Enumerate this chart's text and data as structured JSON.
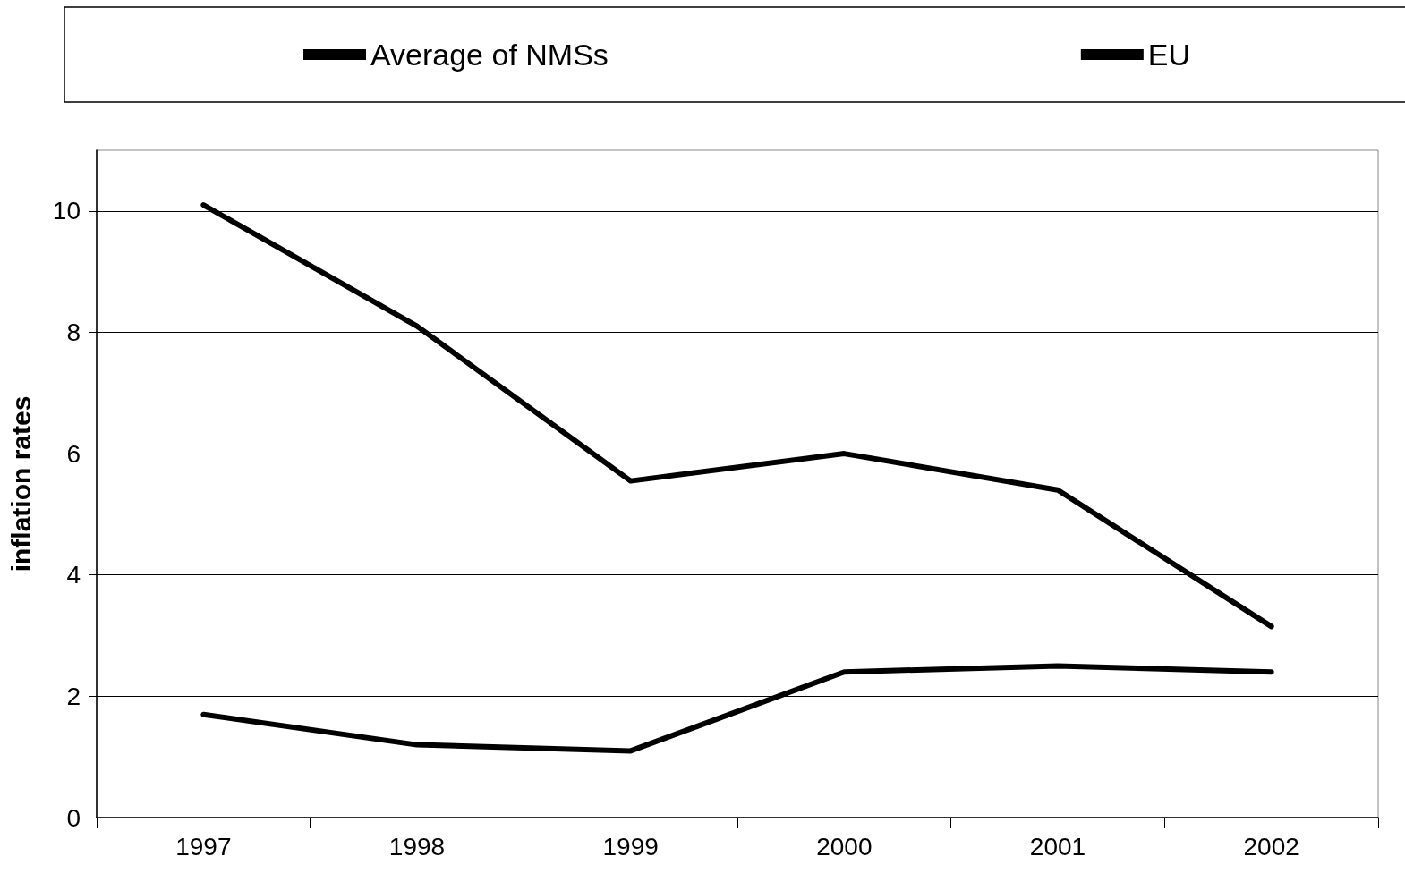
{
  "chart_data": {
    "type": "line",
    "ylabel": "inflation rates",
    "categories": [
      "1997",
      "1998",
      "1999",
      "2000",
      "2001",
      "2002"
    ],
    "series": [
      {
        "name": "Average of NMSs",
        "color": "#000000",
        "values": [
          10.1,
          8.1,
          5.55,
          6.0,
          5.4,
          3.15
        ]
      },
      {
        "name": "EU",
        "color": "#000000",
        "values": [
          1.7,
          1.2,
          1.1,
          2.4,
          2.5,
          2.4
        ]
      }
    ],
    "ylim": [
      0,
      11
    ],
    "yticks": [
      0,
      2,
      4,
      6,
      8,
      10
    ],
    "grid": "y",
    "legend": "top",
    "line_style": "solid"
  }
}
